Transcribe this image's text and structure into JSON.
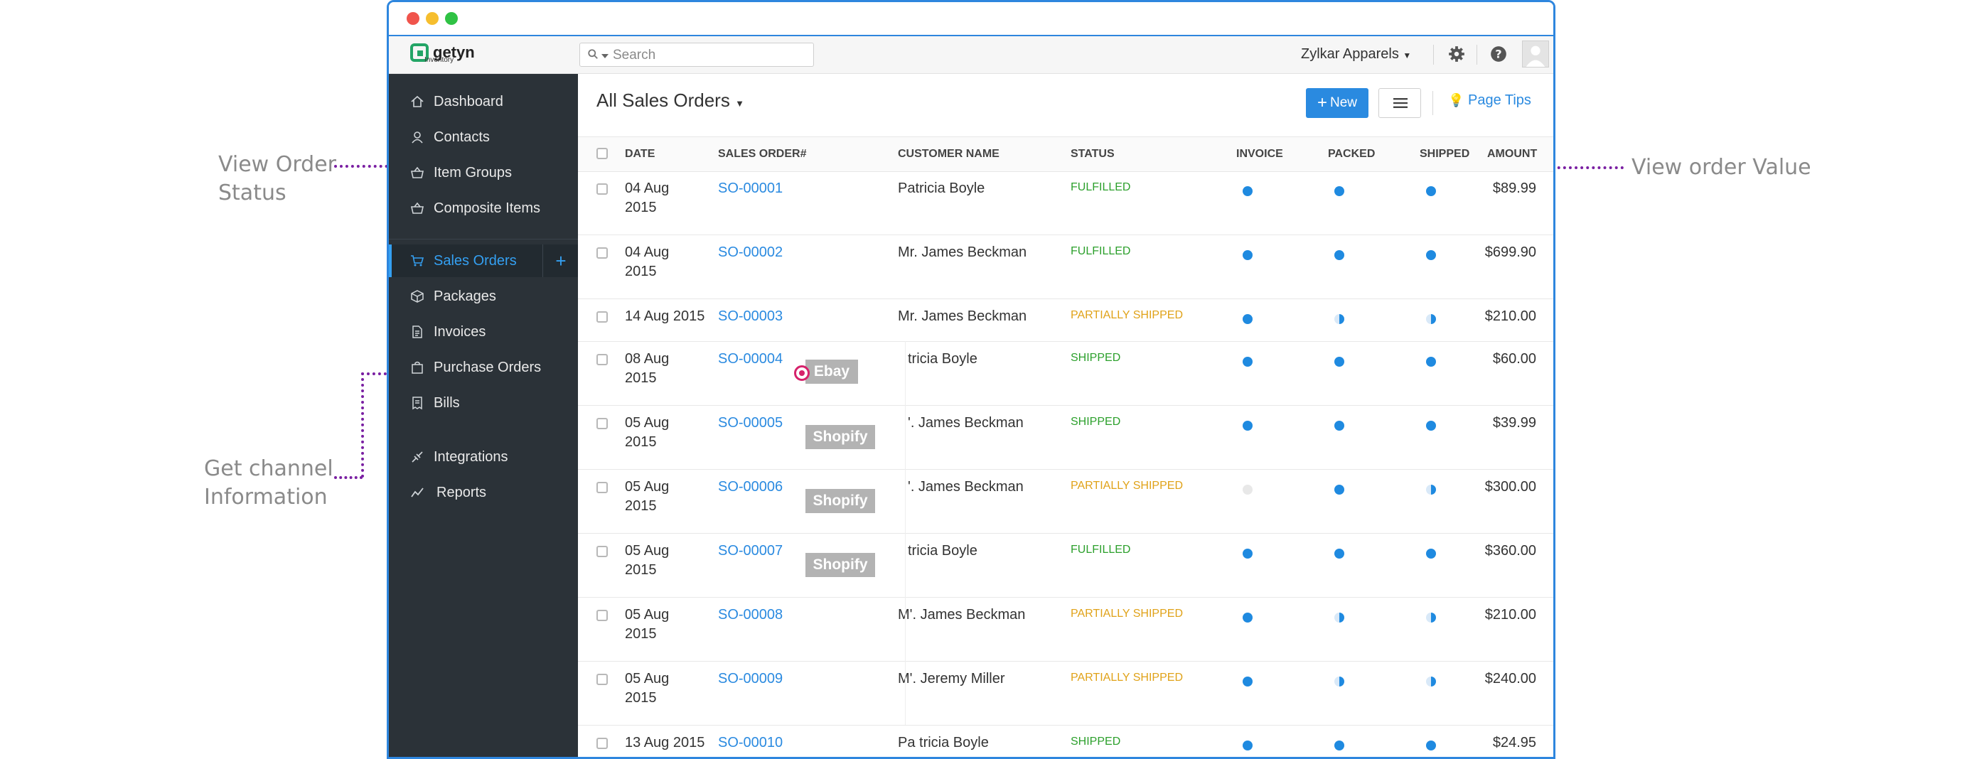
{
  "annotations": {
    "view_order_status": [
      "View Order",
      "Status"
    ],
    "view_order_value": "View order Value",
    "get_channel_info": [
      "Get channel",
      "Information"
    ]
  },
  "app": {
    "logo_text": "getyn",
    "logo_sub": "Inventory",
    "search_placeholder": "Search",
    "org_name": "Zylkar Apparels",
    "icons": [
      "gear-icon",
      "help-icon",
      "avatar"
    ]
  },
  "sidebar": {
    "items": [
      {
        "label": "Dashboard",
        "icon": "home-icon"
      },
      {
        "label": "Contacts",
        "icon": "user-icon"
      },
      {
        "label": "Item Groups",
        "icon": "basket-icon"
      },
      {
        "label": "Composite Items",
        "icon": "basket-icon"
      },
      {
        "label": "Sales Orders",
        "icon": "cart-icon",
        "active": true
      },
      {
        "label": "Packages",
        "icon": "box-icon"
      },
      {
        "label": "Invoices",
        "icon": "document-icon"
      },
      {
        "label": "Purchase Orders",
        "icon": "bag-icon"
      },
      {
        "label": "Bills",
        "icon": "receipt-icon"
      },
      {
        "label": "Integrations",
        "icon": "plug-icon"
      },
      {
        "label": "Reports",
        "icon": "chart-icon"
      }
    ],
    "add_label": "+"
  },
  "main": {
    "title": "All Sales Orders",
    "new_button": "New",
    "page_tips": "Page Tips",
    "columns": [
      "DATE",
      "SALES ORDER#",
      "CUSTOMER NAME",
      "STATUS",
      "INVOICE",
      "PACKED",
      "SHIPPED",
      "AMOUNT"
    ],
    "rows": [
      {
        "date": [
          "04 Aug",
          "2015"
        ],
        "so": "SO-00001",
        "customer": "Patricia Boyle",
        "status": "FULFILLED",
        "invoice": "full",
        "packed": "full",
        "shipped": "full",
        "amount": "$89.99"
      },
      {
        "date": [
          "04 Aug",
          "2015"
        ],
        "so": "SO-00002",
        "customer": "Mr. James Beckman",
        "status": "FULFILLED",
        "invoice": "full",
        "packed": "full",
        "shipped": "full",
        "amount": "$699.90"
      },
      {
        "date": [
          "14 Aug 2015"
        ],
        "so": "SO-00003",
        "customer": "Mr. James Beckman",
        "status": "PARTIALLY SHIPPED",
        "invoice": "full",
        "packed": "half",
        "shipped": "half",
        "amount": "$210.00"
      },
      {
        "date": [
          "08 Aug",
          "2015"
        ],
        "so": "SO-00004",
        "customer": "tricia Boyle",
        "status": "SHIPPED",
        "invoice": "full",
        "packed": "full",
        "shipped": "full",
        "amount": "$60.00",
        "channel": "Ebay"
      },
      {
        "date": [
          "05 Aug",
          "2015"
        ],
        "so": "SO-00005",
        "customer": "'. James Beckman",
        "status": "SHIPPED",
        "invoice": "full",
        "packed": "full",
        "shipped": "full",
        "amount": "$39.99",
        "channel": "Shopify"
      },
      {
        "date": [
          "05 Aug",
          "2015"
        ],
        "so": "SO-00006",
        "customer": "'. James Beckman",
        "status": "PARTIALLY SHIPPED",
        "invoice": "empty",
        "packed": "full",
        "shipped": "half",
        "amount": "$300.00",
        "channel": "Shopify"
      },
      {
        "date": [
          "05 Aug",
          "2015"
        ],
        "so": "SO-00007",
        "customer": "tricia Boyle",
        "status": "FULFILLED",
        "invoice": "full",
        "packed": "full",
        "shipped": "full",
        "amount": "$360.00",
        "channel": "Shopify"
      },
      {
        "date": [
          "05 Aug",
          "2015"
        ],
        "so": "SO-00008",
        "customer": "M'. James Beckman",
        "status": "PARTIALLY SHIPPED",
        "invoice": "full",
        "packed": "half",
        "shipped": "half",
        "amount": "$210.00"
      },
      {
        "date": [
          "05 Aug",
          "2015"
        ],
        "so": "SO-00009",
        "customer": "M'. Jeremy Miller",
        "status": "PARTIALLY SHIPPED",
        "invoice": "full",
        "packed": "half",
        "shipped": "half",
        "amount": "$240.00"
      },
      {
        "date": [
          "13 Aug 2015"
        ],
        "so": "SO-00010",
        "customer": "Pa tricia Boyle",
        "status": "SHIPPED",
        "invoice": "full",
        "packed": "full",
        "shipped": "full",
        "amount": "$24.95"
      }
    ]
  },
  "colors": {
    "accent": "#2a8ae0",
    "sidebar_bg": "#2b3238",
    "fulfilled": "#2ca02c",
    "partial": "#e0a218",
    "annotation_line": "#7a1fa2",
    "annotation_target": "#d6226b"
  }
}
